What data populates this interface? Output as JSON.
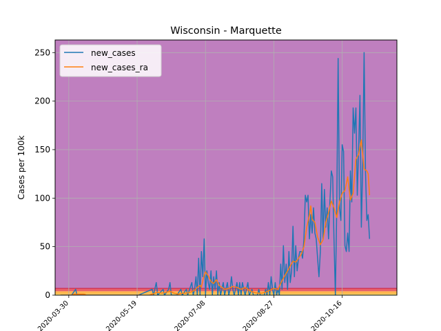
{
  "chart_data": {
    "type": "line",
    "title": "Wisconsin - Marquette",
    "xlabel": "",
    "ylabel": "Cases per 100k",
    "x_ticks": [
      "2020-03-30",
      "2020-05-19",
      "2020-07-08",
      "2020-08-27",
      "2020-10-16"
    ],
    "xlim": [
      "2020-03-20",
      "2020-11-25"
    ],
    "ylim": [
      0,
      263
    ],
    "y_ticks": [
      0,
      50,
      100,
      150,
      200,
      250
    ],
    "grid": true,
    "legend_position": "top-left",
    "background_bands": [
      {
        "from": 0,
        "to": 1,
        "color": "#fff176"
      },
      {
        "from": 1,
        "to": 4,
        "color": "#ffb74d"
      },
      {
        "from": 4,
        "to": 7,
        "color": "#e8606a"
      },
      {
        "from": 7,
        "to": 263,
        "color": "#bf7fbf"
      }
    ],
    "band_line": {
      "value": 7,
      "color": "#cc2040"
    },
    "series": [
      {
        "name": "new_cases",
        "color": "#1f77b4",
        "points": [
          [
            "2020-03-24",
            0
          ],
          [
            "2020-04-01",
            0
          ],
          [
            "2020-04-04",
            6
          ],
          [
            "2020-04-05",
            0
          ],
          [
            "2020-04-12",
            0
          ],
          [
            "2020-05-10",
            0
          ],
          [
            "2020-05-20",
            0
          ],
          [
            "2020-05-30",
            6
          ],
          [
            "2020-05-31",
            0
          ],
          [
            "2020-06-02",
            13
          ],
          [
            "2020-06-03",
            0
          ],
          [
            "2020-06-07",
            6
          ],
          [
            "2020-06-08",
            0
          ],
          [
            "2020-06-11",
            6
          ],
          [
            "2020-06-12",
            13
          ],
          [
            "2020-06-13",
            0
          ],
          [
            "2020-06-17",
            0
          ],
          [
            "2020-06-20",
            6
          ],
          [
            "2020-06-21",
            0
          ],
          [
            "2020-06-24",
            6
          ],
          [
            "2020-06-25",
            0
          ],
          [
            "2020-06-28",
            13
          ],
          [
            "2020-06-29",
            0
          ],
          [
            "2020-06-30",
            6
          ],
          [
            "2020-07-01",
            19
          ],
          [
            "2020-07-02",
            0
          ],
          [
            "2020-07-03",
            38
          ],
          [
            "2020-07-04",
            0
          ],
          [
            "2020-07-05",
            45
          ],
          [
            "2020-07-06",
            19
          ],
          [
            "2020-07-07",
            58
          ],
          [
            "2020-07-08",
            0
          ],
          [
            "2020-07-09",
            25
          ],
          [
            "2020-07-10",
            13
          ],
          [
            "2020-07-11",
            6
          ],
          [
            "2020-07-12",
            25
          ],
          [
            "2020-07-13",
            0
          ],
          [
            "2020-07-14",
            19
          ],
          [
            "2020-07-15",
            6
          ],
          [
            "2020-07-16",
            25
          ],
          [
            "2020-07-17",
            0
          ],
          [
            "2020-07-18",
            13
          ],
          [
            "2020-07-19",
            0
          ],
          [
            "2020-07-20",
            6
          ],
          [
            "2020-07-21",
            13
          ],
          [
            "2020-07-22",
            0
          ],
          [
            "2020-07-24",
            13
          ],
          [
            "2020-07-25",
            0
          ],
          [
            "2020-07-26",
            6
          ],
          [
            "2020-07-27",
            19
          ],
          [
            "2020-07-28",
            6
          ],
          [
            "2020-07-29",
            0
          ],
          [
            "2020-07-31",
            13
          ],
          [
            "2020-08-01",
            0
          ],
          [
            "2020-08-02",
            13
          ],
          [
            "2020-08-03",
            0
          ],
          [
            "2020-08-04",
            13
          ],
          [
            "2020-08-05",
            6
          ],
          [
            "2020-08-06",
            0
          ],
          [
            "2020-08-08",
            13
          ],
          [
            "2020-08-09",
            0
          ],
          [
            "2020-08-11",
            6
          ],
          [
            "2020-08-12",
            0
          ],
          [
            "2020-08-15",
            0
          ],
          [
            "2020-08-16",
            6
          ],
          [
            "2020-08-17",
            0
          ],
          [
            "2020-08-20",
            0
          ],
          [
            "2020-08-21",
            6
          ],
          [
            "2020-08-22",
            0
          ],
          [
            "2020-08-23",
            13
          ],
          [
            "2020-08-24",
            0
          ],
          [
            "2020-08-25",
            19
          ],
          [
            "2020-08-26",
            6
          ],
          [
            "2020-08-27",
            0
          ],
          [
            "2020-08-28",
            13
          ],
          [
            "2020-08-29",
            0
          ],
          [
            "2020-08-30",
            6
          ],
          [
            "2020-08-31",
            0
          ],
          [
            "2020-09-01",
            32
          ],
          [
            "2020-09-02",
            6
          ],
          [
            "2020-09-03",
            51
          ],
          [
            "2020-09-04",
            13
          ],
          [
            "2020-09-05",
            32
          ],
          [
            "2020-09-06",
            6
          ],
          [
            "2020-09-07",
            45
          ],
          [
            "2020-09-08",
            13
          ],
          [
            "2020-09-09",
            25
          ],
          [
            "2020-09-10",
            71
          ],
          [
            "2020-09-11",
            19
          ],
          [
            "2020-09-12",
            51
          ],
          [
            "2020-09-13",
            25
          ],
          [
            "2020-09-14",
            38
          ],
          [
            "2020-09-15",
            45
          ],
          [
            "2020-09-16",
            45
          ],
          [
            "2020-09-17",
            38
          ],
          [
            "2020-09-18",
            58
          ],
          [
            "2020-09-19",
            103
          ],
          [
            "2020-09-20",
            96
          ],
          [
            "2020-09-21",
            103
          ],
          [
            "2020-09-22",
            58
          ],
          [
            "2020-09-23",
            83
          ],
          [
            "2020-09-24",
            64
          ],
          [
            "2020-09-25",
            90
          ],
          [
            "2020-09-26",
            64
          ],
          [
            "2020-09-27",
            58
          ],
          [
            "2020-09-28",
            38
          ],
          [
            "2020-09-29",
            19
          ],
          [
            "2020-09-30",
            45
          ],
          [
            "2020-10-01",
            115
          ],
          [
            "2020-10-02",
            58
          ],
          [
            "2020-10-03",
            109
          ],
          [
            "2020-10-04",
            70
          ],
          [
            "2020-10-05",
            90
          ],
          [
            "2020-10-06",
            58
          ],
          [
            "2020-10-07",
            96
          ],
          [
            "2020-10-08",
            128
          ],
          [
            "2020-10-09",
            122
          ],
          [
            "2020-10-10",
            58
          ],
          [
            "2020-10-11",
            0
          ],
          [
            "2020-10-12",
            90
          ],
          [
            "2020-10-13",
            244
          ],
          [
            "2020-10-14",
            90
          ],
          [
            "2020-10-15",
            77
          ],
          [
            "2020-10-16",
            155
          ],
          [
            "2020-10-17",
            148
          ],
          [
            "2020-10-18",
            51
          ],
          [
            "2020-10-19",
            45
          ],
          [
            "2020-10-20",
            64
          ],
          [
            "2020-10-21",
            45
          ],
          [
            "2020-10-22",
            128
          ],
          [
            "2020-10-23",
            96
          ],
          [
            "2020-10-24",
            193
          ],
          [
            "2020-10-25",
            167
          ],
          [
            "2020-10-26",
            193
          ],
          [
            "2020-10-27",
            103
          ],
          [
            "2020-10-28",
            148
          ],
          [
            "2020-10-29",
            206
          ],
          [
            "2020-10-30",
            70
          ],
          [
            "2020-10-31",
            135
          ],
          [
            "2020-11-01",
            250
          ],
          [
            "2020-11-02",
            128
          ],
          [
            "2020-11-03",
            77
          ],
          [
            "2020-11-04",
            83
          ],
          [
            "2020-11-05",
            58
          ]
        ]
      },
      {
        "name": "new_cases_ra",
        "color": "#ff7f0e",
        "points": [
          [
            "2020-03-24",
            0
          ],
          [
            "2020-04-01",
            0
          ],
          [
            "2020-04-03",
            1
          ],
          [
            "2020-04-10",
            1
          ],
          [
            "2020-04-12",
            0
          ],
          [
            "2020-05-10",
            0
          ],
          [
            "2020-05-28",
            0
          ],
          [
            "2020-06-01",
            2
          ],
          [
            "2020-06-03",
            3
          ],
          [
            "2020-06-06",
            2
          ],
          [
            "2020-06-09",
            3
          ],
          [
            "2020-06-12",
            4
          ],
          [
            "2020-06-15",
            2
          ],
          [
            "2020-06-18",
            1
          ],
          [
            "2020-06-21",
            2
          ],
          [
            "2020-06-24",
            2
          ],
          [
            "2020-06-27",
            3
          ],
          [
            "2020-06-30",
            5
          ],
          [
            "2020-07-02",
            8
          ],
          [
            "2020-07-04",
            10
          ],
          [
            "2020-07-05",
            8
          ],
          [
            "2020-07-06",
            15
          ],
          [
            "2020-07-07",
            20
          ],
          [
            "2020-07-08",
            24
          ],
          [
            "2020-07-09",
            22
          ],
          [
            "2020-07-10",
            20
          ],
          [
            "2020-07-12",
            14
          ],
          [
            "2020-07-14",
            12
          ],
          [
            "2020-07-16",
            16
          ],
          [
            "2020-07-18",
            10
          ],
          [
            "2020-07-20",
            8
          ],
          [
            "2020-07-22",
            6
          ],
          [
            "2020-07-25",
            7
          ],
          [
            "2020-07-28",
            9
          ],
          [
            "2020-07-31",
            8
          ],
          [
            "2020-08-03",
            6
          ],
          [
            "2020-08-06",
            8
          ],
          [
            "2020-08-09",
            5
          ],
          [
            "2020-08-12",
            3
          ],
          [
            "2020-08-15",
            2
          ],
          [
            "2020-08-18",
            2
          ],
          [
            "2020-08-21",
            3
          ],
          [
            "2020-08-24",
            5
          ],
          [
            "2020-08-27",
            7
          ],
          [
            "2020-08-30",
            6
          ],
          [
            "2020-09-02",
            15
          ],
          [
            "2020-09-04",
            20
          ],
          [
            "2020-09-06",
            25
          ],
          [
            "2020-09-08",
            30
          ],
          [
            "2020-09-10",
            35
          ],
          [
            "2020-09-12",
            34
          ],
          [
            "2020-09-14",
            38
          ],
          [
            "2020-09-16",
            42
          ],
          [
            "2020-09-18",
            50
          ],
          [
            "2020-09-20",
            70
          ],
          [
            "2020-09-22",
            82
          ],
          [
            "2020-09-23",
            92
          ],
          [
            "2020-09-24",
            78
          ],
          [
            "2020-09-26",
            75
          ],
          [
            "2020-09-28",
            60
          ],
          [
            "2020-09-30",
            52
          ],
          [
            "2020-10-02",
            57
          ],
          [
            "2020-10-04",
            75
          ],
          [
            "2020-10-06",
            85
          ],
          [
            "2020-10-08",
            97
          ],
          [
            "2020-10-10",
            90
          ],
          [
            "2020-10-12",
            80
          ],
          [
            "2020-10-14",
            96
          ],
          [
            "2020-10-16",
            105
          ],
          [
            "2020-10-18",
            108
          ],
          [
            "2020-10-20",
            122
          ],
          [
            "2020-10-22",
            98
          ],
          [
            "2020-10-24",
            105
          ],
          [
            "2020-10-26",
            140
          ],
          [
            "2020-10-28",
            145
          ],
          [
            "2020-10-30",
            160
          ],
          [
            "2020-11-01",
            130
          ],
          [
            "2020-11-03",
            128
          ],
          [
            "2020-11-04",
            125
          ],
          [
            "2020-11-05",
            103
          ]
        ]
      }
    ]
  }
}
